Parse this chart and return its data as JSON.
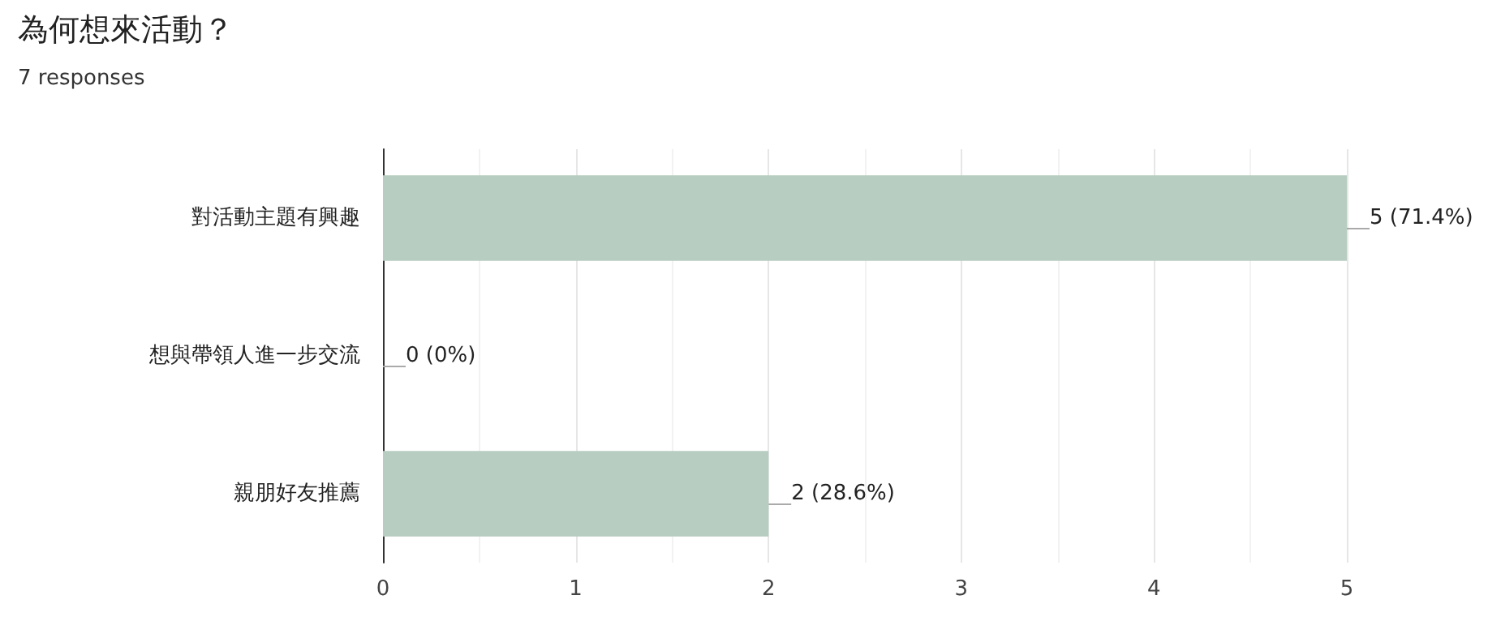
{
  "chart_data": {
    "type": "bar",
    "orientation": "horizontal",
    "title": "為何想來活動？",
    "subtitle": "7 responses",
    "categories": [
      "對活動主題有興趣",
      "想與帶領人進一步交流",
      "親朋好友推薦"
    ],
    "values": [
      5,
      0,
      2
    ],
    "color": "#b7cdc1",
    "value_labels": [
      "5 (71.4%)",
      "0 (0%)",
      "2 (28.6%)"
    ],
    "xlim": [
      0,
      5
    ],
    "xticks": [
      0,
      1,
      2,
      3,
      4,
      5
    ],
    "grid": "x"
  }
}
